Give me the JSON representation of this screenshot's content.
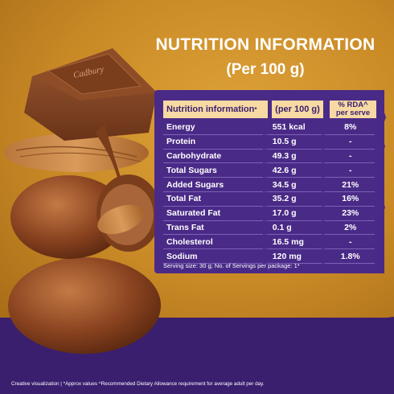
{
  "heading": {
    "line1": "NUTRITION INFORMATION",
    "line2": "(Per 100 g)"
  },
  "brand_logo": "Cadbury",
  "table": {
    "headers": {
      "nutrient": "Nutrition information",
      "nutrient_mark": "*",
      "per100": "(per 100 g)",
      "rda_line1": "% RDA^",
      "rda_line2": "per serve"
    },
    "rows": [
      {
        "name": "Energy",
        "value": "551 kcal",
        "rda": "8%"
      },
      {
        "name": "Protein",
        "value": "10.5 g",
        "rda": "-"
      },
      {
        "name": "Carbohydrate",
        "value": "49.3 g",
        "rda": "-"
      },
      {
        "name": "Total Sugars",
        "value": "42.6 g",
        "rda": "-"
      },
      {
        "name": "Added Sugars",
        "value": "34.5 g",
        "rda": "21%"
      },
      {
        "name": "Total Fat",
        "value": "35.2 g",
        "rda": "16%"
      },
      {
        "name": "Saturated Fat",
        "value": "17.0 g",
        "rda": "23%"
      },
      {
        "name": "Trans Fat",
        "value": "0.1 g",
        "rda": "2%"
      },
      {
        "name": "Cholesterol",
        "value": "16.5 mg",
        "rda": "-"
      },
      {
        "name": "Sodium",
        "value": "120 mg",
        "rda": "1.8%"
      }
    ]
  },
  "serving_note": "Serving size: 30 g; No. of Servings per package: 1*",
  "footer_note": "Creative visualization | *Approx values ^Recommended Dietary Allowance requirement for average adult per day.",
  "colors": {
    "background_gold": "#c98a26",
    "panel_purple": "#4a2a87",
    "header_cream": "#f7d9a3",
    "brand_purple": "#3a1f6f",
    "chocolate": "#7a3e1c"
  }
}
